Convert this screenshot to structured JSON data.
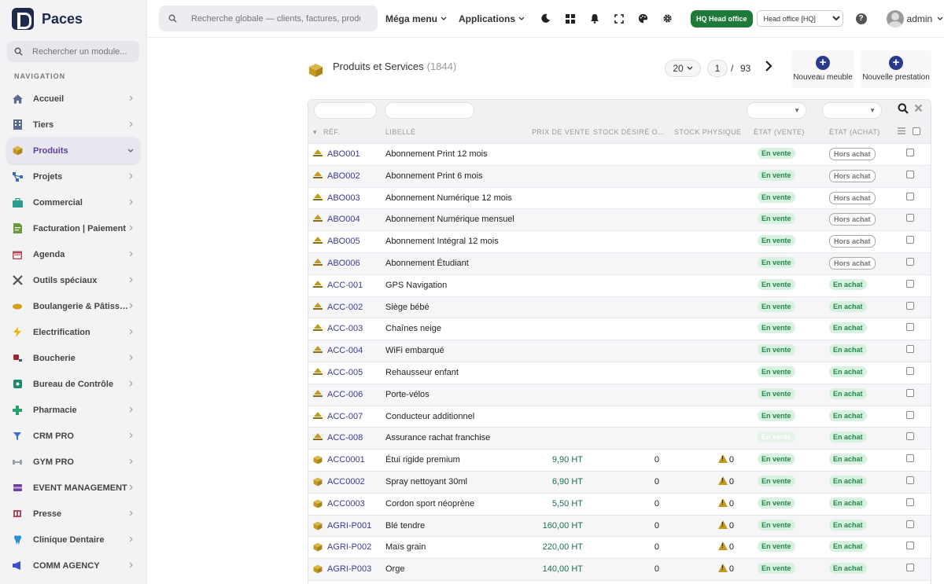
{
  "brand": {
    "name": "Paces"
  },
  "sidebar": {
    "search_placeholder": "Rechercher un module...",
    "section_title": "NAVIGATION",
    "items": [
      {
        "label": "Accueil",
        "icon": "home-icon",
        "color": "#5a6b8c"
      },
      {
        "label": "Tiers",
        "icon": "building-icon",
        "color": "#5a6b8c"
      },
      {
        "label": "Produits",
        "icon": "box-icon",
        "color": "#c49a1e"
      },
      {
        "label": "Projets",
        "icon": "network-icon",
        "color": "#3f6bb5"
      },
      {
        "label": "Commercial",
        "icon": "briefcase-icon",
        "color": "#2a9d8f"
      },
      {
        "label": "Facturation | Paiement",
        "icon": "invoice-icon",
        "color": "#6a9a3a"
      },
      {
        "label": "Agenda",
        "icon": "calendar-icon",
        "color": "#b5485a"
      },
      {
        "label": "Outils spéciaux",
        "icon": "tools-icon",
        "color": "#555555"
      },
      {
        "label": "Boulangerie & Pâtisserie",
        "icon": "bread-icon",
        "color": "#d4a017"
      },
      {
        "label": "Electrification",
        "icon": "bolt-icon",
        "color": "#f0b400"
      },
      {
        "label": "Boucherie",
        "icon": "meat-icon",
        "color": "#a0282d"
      },
      {
        "label": "Bureau de Contrôle",
        "icon": "control-icon",
        "color": "#1f8a6a"
      },
      {
        "label": "Pharmacie",
        "icon": "cross-icon",
        "color": "#28a06a"
      },
      {
        "label": "CRM PRO",
        "icon": "funnel-icon",
        "color": "#3b6fd1"
      },
      {
        "label": "GYM PRO",
        "icon": "dumbbell-icon",
        "color": "#9aa0a8"
      },
      {
        "label": "EVENT MANAGEMENT",
        "icon": "ticket-icon",
        "color": "#6a3fa0"
      },
      {
        "label": "Presse",
        "icon": "newspaper-icon",
        "color": "#b5485a"
      },
      {
        "label": "Clinique Dentaire",
        "icon": "tooth-icon",
        "color": "#2a8fd1"
      },
      {
        "label": "COMM AGENCY",
        "icon": "megaphone-icon",
        "color": "#3b4fd1"
      }
    ]
  },
  "topbar": {
    "search_placeholder": "Recherche globale — clients, factures, produits...",
    "mega_menu": "Méga menu",
    "applications": "Applications",
    "hq_badge": "HQ Head office",
    "entity": "Head office [HQ]",
    "user": "admin"
  },
  "page": {
    "title": "Produits et Services",
    "count": "(1844)",
    "limit": "20",
    "page": "1",
    "sep": "/",
    "total_pages": "93",
    "new_furniture": "Nouveau meuble",
    "new_service": "Nouvelle prestation"
  },
  "table": {
    "headers": {
      "ref": "RÉF.",
      "label": "LIBELLÉ",
      "price": "PRIX DE VENTE",
      "stock_desired": "STOCK DÉSIRÉ O...",
      "stock_physical": "STOCK PHYSIQUE",
      "status_sale": "ÉTAT (VENTE)",
      "status_buy": "ÉTAT (ACHAT)"
    },
    "rows": [
      {
        "ref": "ABO001",
        "label": "Abonnement Print 12 mois",
        "price": "",
        "stock_desired": "",
        "stock_physical": "",
        "type": "service",
        "sale": "En vente",
        "buy": "Hors achat",
        "buy_on": false
      },
      {
        "ref": "ABO002",
        "label": "Abonnement Print 6 mois",
        "price": "",
        "stock_desired": "",
        "stock_physical": "",
        "type": "service",
        "sale": "En vente",
        "buy": "Hors achat",
        "buy_on": false
      },
      {
        "ref": "ABO003",
        "label": "Abonnement Numérique 12 mois",
        "price": "",
        "stock_desired": "",
        "stock_physical": "",
        "type": "service",
        "sale": "En vente",
        "buy": "Hors achat",
        "buy_on": false
      },
      {
        "ref": "ABO004",
        "label": "Abonnement Numérique mensuel",
        "price": "",
        "stock_desired": "",
        "stock_physical": "",
        "type": "service",
        "sale": "En vente",
        "buy": "Hors achat",
        "buy_on": false
      },
      {
        "ref": "ABO005",
        "label": "Abonnement Intégral 12 mois",
        "price": "",
        "stock_desired": "",
        "stock_physical": "",
        "type": "service",
        "sale": "En vente",
        "buy": "Hors achat",
        "buy_on": false
      },
      {
        "ref": "ABO006",
        "label": "Abonnement Étudiant",
        "price": "",
        "stock_desired": "",
        "stock_physical": "",
        "type": "service",
        "sale": "En vente",
        "buy": "Hors achat",
        "buy_on": false
      },
      {
        "ref": "ACC-001",
        "label": "GPS Navigation",
        "price": "",
        "stock_desired": "",
        "stock_physical": "",
        "type": "service",
        "sale": "En vente",
        "buy": "En achat",
        "buy_on": true
      },
      {
        "ref": "ACC-002",
        "label": "Siège bébé",
        "price": "",
        "stock_desired": "",
        "stock_physical": "",
        "type": "service",
        "sale": "En vente",
        "buy": "En achat",
        "buy_on": true
      },
      {
        "ref": "ACC-003",
        "label": "Chaînes neige",
        "price": "",
        "stock_desired": "",
        "stock_physical": "",
        "type": "service",
        "sale": "En vente",
        "buy": "En achat",
        "buy_on": true
      },
      {
        "ref": "ACC-004",
        "label": "WiFi embarqué",
        "price": "",
        "stock_desired": "",
        "stock_physical": "",
        "type": "service",
        "sale": "En vente",
        "buy": "En achat",
        "buy_on": true
      },
      {
        "ref": "ACC-005",
        "label": "Rehausseur enfant",
        "price": "",
        "stock_desired": "",
        "stock_physical": "",
        "type": "service",
        "sale": "En vente",
        "buy": "En achat",
        "buy_on": true
      },
      {
        "ref": "ACC-006",
        "label": "Porte-vélos",
        "price": "",
        "stock_desired": "",
        "stock_physical": "",
        "type": "service",
        "sale": "En vente",
        "buy": "En achat",
        "buy_on": true
      },
      {
        "ref": "ACC-007",
        "label": "Conducteur additionnel",
        "price": "",
        "stock_desired": "",
        "stock_physical": "",
        "type": "service",
        "sale": "En vente",
        "buy": "En achat",
        "buy_on": true
      },
      {
        "ref": "ACC-008",
        "label": "Assurance rachat franchise",
        "price": "",
        "stock_desired": "",
        "stock_physical": "",
        "type": "service",
        "sale": "En vente",
        "sale_dim": true,
        "buy": "En achat",
        "buy_on": true
      },
      {
        "ref": "ACC0001",
        "label": "Étui rigide premium",
        "price": "9,90 HT",
        "stock_desired": "0",
        "stock_physical": "0",
        "type": "product",
        "sale": "En vente",
        "buy": "En achat",
        "buy_on": true
      },
      {
        "ref": "ACC0002",
        "label": "Spray nettoyant 30ml",
        "price": "6,90 HT",
        "stock_desired": "0",
        "stock_physical": "0",
        "type": "product",
        "sale": "En vente",
        "buy": "En achat",
        "buy_on": true
      },
      {
        "ref": "ACC0003",
        "label": "Cordon sport néoprène",
        "price": "5,50 HT",
        "stock_desired": "0",
        "stock_physical": "0",
        "type": "product",
        "sale": "En vente",
        "buy": "En achat",
        "buy_on": true
      },
      {
        "ref": "AGRI-P001",
        "label": "Blé tendre",
        "price": "160,00 HT",
        "stock_desired": "0",
        "stock_physical": "0",
        "type": "product",
        "sale": "En vente",
        "buy": "En achat",
        "buy_on": true
      },
      {
        "ref": "AGRI-P002",
        "label": "Maïs grain",
        "price": "220,00 HT",
        "stock_desired": "0",
        "stock_physical": "0",
        "type": "product",
        "sale": "En vente",
        "buy": "En achat",
        "buy_on": true
      },
      {
        "ref": "AGRI-P003",
        "label": "Orge",
        "price": "140,00 HT",
        "stock_desired": "0",
        "stock_physical": "0",
        "type": "product",
        "sale": "En vente",
        "buy": "En achat",
        "buy_on": true
      }
    ]
  }
}
